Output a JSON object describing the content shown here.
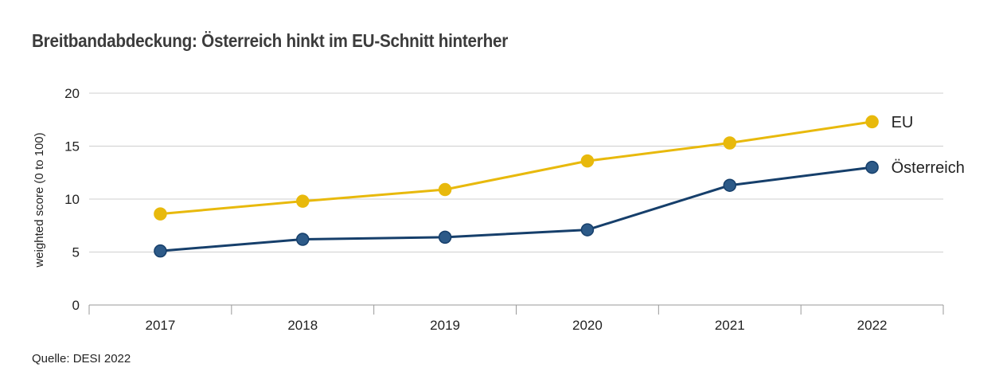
{
  "chart_data": {
    "type": "line",
    "title": "Breitbandabdeckung: Österreich hinkt im EU-Schnitt hinterher",
    "ylabel": "weighted score (0 to 100)",
    "xlabel": "",
    "categories": [
      "2017",
      "2018",
      "2019",
      "2020",
      "2021",
      "2022"
    ],
    "ylim": [
      0,
      20
    ],
    "yticks": [
      0,
      5,
      10,
      15,
      20
    ],
    "grid": true,
    "legend": "end-of-line labels",
    "series": [
      {
        "name": "EU",
        "color": "#e8b90c",
        "values": [
          8.6,
          9.8,
          10.9,
          13.6,
          15.3,
          17.3
        ]
      },
      {
        "name": "Österreich",
        "color": "#163f6b",
        "marker_color": "#2d5a88",
        "values": [
          5.1,
          6.2,
          6.4,
          7.1,
          11.3,
          13.0
        ]
      }
    ]
  },
  "source": "Quelle: DESI 2022"
}
